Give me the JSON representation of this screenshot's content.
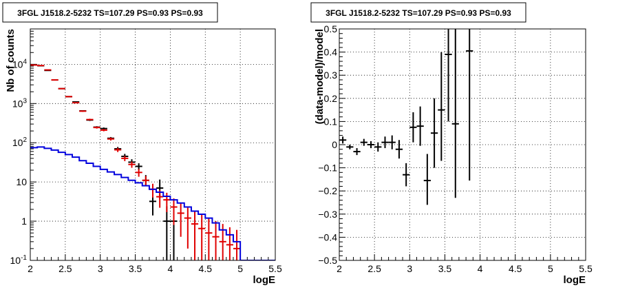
{
  "chart_data": [
    {
      "type": "line",
      "title": "3FGL J1518.2-5232 TS=107.29 PS=0.93 PS=0.93",
      "xlabel": "logE",
      "ylabel": "Nb of counts",
      "xlim": [
        2,
        5.5
      ],
      "ylim": [
        0.1,
        80000
      ],
      "yscale": "log",
      "grid": true,
      "x_ticks": [
        "2",
        "2.5",
        "3",
        "3.5",
        "4",
        "4.5",
        "5",
        "5.5"
      ],
      "y_ticks": [
        "10^-1",
        "1",
        "10",
        "10^2",
        "10^3",
        "10^4"
      ],
      "colors": {
        "data": "#000000",
        "model": "#e00000",
        "source": "#0000dd"
      },
      "series": [
        {
          "key": "data",
          "style": "errorbar",
          "x": [
            2.05,
            2.15,
            2.25,
            2.35,
            2.45,
            2.55,
            2.65,
            2.75,
            2.85,
            2.95,
            3.05,
            3.15,
            3.25,
            3.35,
            3.45,
            3.55,
            3.65,
            3.75,
            3.85,
            3.95,
            4.05
          ],
          "y": [
            9800,
            9200,
            7000,
            4000,
            2400,
            1500,
            1100,
            650,
            380,
            250,
            230,
            130,
            70,
            45,
            32,
            25,
            11,
            3.2,
            7,
            1,
            1
          ],
          "ylow": [
            9700,
            9100,
            6920,
            3940,
            2350,
            1460,
            1070,
            625,
            360,
            235,
            215,
            120,
            63,
            39,
            27,
            20,
            8,
            1.4,
            3.8,
            0.1,
            0.1
          ],
          "yhigh": [
            9900,
            9300,
            7080,
            4060,
            2450,
            1540,
            1130,
            675,
            400,
            265,
            245,
            140,
            78,
            52,
            38,
            30,
            15,
            5.6,
            11.5,
            2.4,
            2.4
          ]
        },
        {
          "key": "model",
          "style": "errorbar",
          "x": [
            2.05,
            2.15,
            2.25,
            2.35,
            2.45,
            2.55,
            2.65,
            2.75,
            2.85,
            2.95,
            3.05,
            3.15,
            3.25,
            3.35,
            3.45,
            3.55,
            3.65,
            3.75,
            3.85,
            3.95,
            4.05,
            4.15,
            4.25,
            4.35,
            4.45,
            4.55,
            4.65,
            4.75,
            4.85,
            4.95
          ],
          "y": [
            9600,
            9300,
            7200,
            4000,
            2400,
            1500,
            1050,
            640,
            390,
            245,
            210,
            125,
            66,
            40,
            28,
            17.5,
            11,
            6.5,
            4.2,
            3.5,
            2.3,
            1.6,
            1.2,
            0.85,
            0.65,
            0.5,
            0.4,
            0.3,
            0.25,
            0.2
          ],
          "ylow": [
            9500,
            9200,
            7120,
            3940,
            2350,
            1460,
            1020,
            615,
            370,
            230,
            196,
            114,
            58,
            34,
            23,
            13.6,
            7.8,
            4,
            2.2,
            1.7,
            0.8,
            0.4,
            0.2,
            0.1,
            0.1,
            0.1,
            0.1,
            0.1,
            0.1,
            0.1
          ],
          "yhigh": [
            9700,
            9400,
            7280,
            4060,
            2450,
            1540,
            1080,
            665,
            410,
            260,
            225,
            136,
            74,
            46,
            33,
            21.4,
            14.2,
            9,
            6.2,
            5.3,
            3.8,
            2.9,
            2.2,
            1.8,
            1.5,
            1.2,
            1.0,
            0.85,
            0.7,
            0.6
          ]
        },
        {
          "key": "source",
          "style": "step",
          "x": [
            2.05,
            2.15,
            2.25,
            2.35,
            2.45,
            2.55,
            2.65,
            2.75,
            2.85,
            2.95,
            3.05,
            3.15,
            3.25,
            3.35,
            3.45,
            3.55,
            3.65,
            3.75,
            3.85,
            3.95,
            4.05,
            4.15,
            4.25,
            4.35,
            4.45,
            4.55,
            4.65,
            4.75,
            4.85,
            4.95,
            5.05,
            5.15,
            5.25,
            5.35,
            5.45
          ],
          "y": [
            75,
            78,
            72,
            65,
            57,
            50,
            43,
            35,
            30,
            25,
            21,
            18,
            15.5,
            13,
            11,
            9.5,
            8,
            6.5,
            5.5,
            4.3,
            3.5,
            2.9,
            2.3,
            1.8,
            1.5,
            1.2,
            0.9,
            0.6,
            0.45,
            0.3,
            0.1,
            0.1,
            0.1,
            0.1,
            0.1
          ]
        }
      ]
    },
    {
      "type": "scatter",
      "title": "3FGL J1518.2-5232 TS=107.29 PS=0.93 PS=0.93",
      "xlabel": "logE",
      "ylabel": "(data-model)/model",
      "xlim": [
        2,
        5.5
      ],
      "ylim": [
        -0.5,
        0.5
      ],
      "grid": true,
      "x_ticks": [
        "2",
        "2.5",
        "3",
        "3.5",
        "4",
        "4.5",
        "5",
        "5.5"
      ],
      "y_ticks": [
        "-0.5",
        "-0.4",
        "-0.3",
        "-0.2",
        "-0.1",
        "0",
        "0.1",
        "0.2",
        "0.3",
        "0.4",
        "0.5"
      ],
      "series": [
        {
          "key": "residuals",
          "style": "errorbar",
          "x": [
            2.05,
            2.15,
            2.25,
            2.35,
            2.45,
            2.55,
            2.65,
            2.75,
            2.85,
            2.95,
            3.05,
            3.15,
            3.25,
            3.35,
            3.45,
            3.55,
            3.65,
            3.85
          ],
          "y": [
            0.02,
            -0.01,
            -0.03,
            0.01,
            0.0,
            -0.01,
            0.01,
            0.01,
            -0.02,
            -0.13,
            0.075,
            0.08,
            -0.155,
            0.05,
            0.15,
            0.39,
            0.09,
            0.405
          ],
          "ylow": [
            0.005,
            -0.02,
            -0.045,
            -0.005,
            -0.015,
            -0.03,
            -0.015,
            -0.02,
            -0.06,
            -0.18,
            0.01,
            -0.005,
            -0.26,
            -0.1,
            -0.07,
            0.1,
            -0.23,
            -0.155
          ],
          "yhigh": [
            0.035,
            0.0,
            -0.015,
            0.025,
            0.015,
            0.01,
            0.035,
            0.04,
            0.02,
            -0.08,
            0.14,
            0.165,
            -0.04,
            0.2,
            0.4,
            0.5,
            0.5,
            0.5
          ]
        }
      ]
    }
  ]
}
